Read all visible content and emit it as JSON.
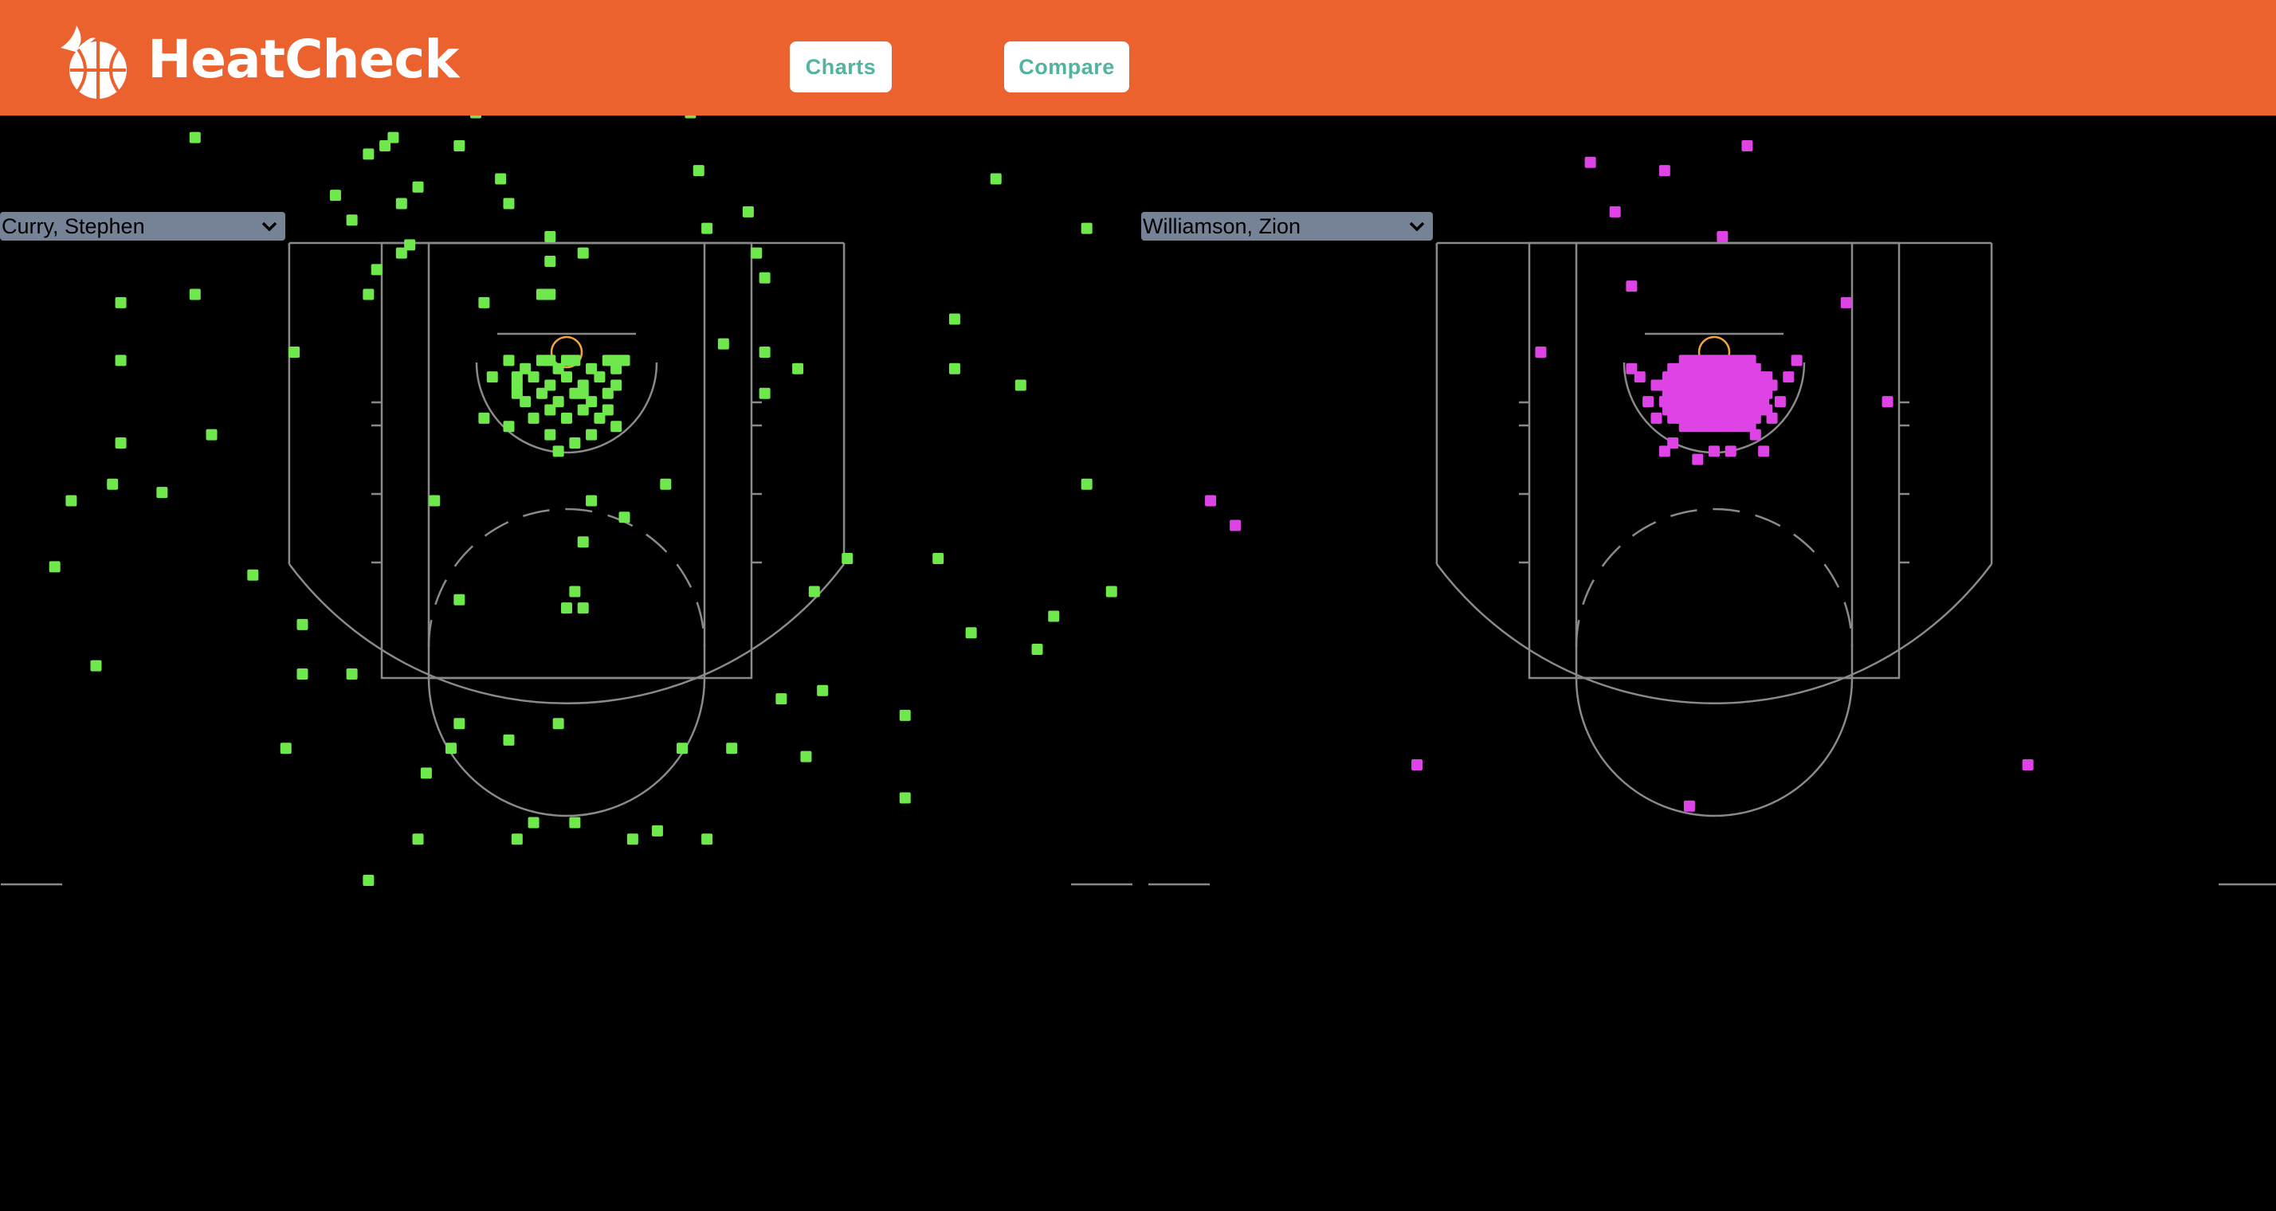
{
  "header": {
    "brand": "HeatCheck",
    "nav": [
      {
        "label": "Charts"
      },
      {
        "label": "Compare"
      }
    ],
    "bg_color": "#ec622f",
    "accent_color": "#52b4a0"
  },
  "charts": [
    {
      "player_select": {
        "value": "Curry, Stephen"
      },
      "shot_color": "#6fe84e",
      "shots_top": [
        [
          -15,
          50
        ],
        [
          -3,
          50
        ],
        [
          19,
          35
        ],
        [
          33,
          37
        ],
        [
          49,
          75
        ],
        [
          -25,
          53
        ],
        [
          -25,
          43
        ],
        [
          -23,
          39
        ],
        [
          27,
          38
        ],
        [
          42,
          57
        ],
        [
          7,
          60
        ],
        [
          -24,
          24
        ],
        [
          -23,
          10
        ],
        [
          -22,
          25
        ],
        [
          -21,
          26
        ],
        [
          -20,
          12
        ],
        [
          -20,
          18
        ],
        [
          22,
          17
        ],
        [
          -28,
          19
        ],
        [
          -26,
          16
        ],
        [
          -24,
          7
        ],
        [
          -19,
          13
        ],
        [
          -18,
          20
        ],
        [
          -14,
          35
        ],
        [
          -13,
          25
        ],
        [
          -11,
          29
        ],
        [
          16,
          22
        ],
        [
          24,
          9
        ],
        [
          23,
          12
        ],
        [
          15,
          29
        ],
        [
          17,
          15
        ],
        [
          6,
          34
        ],
        [
          9,
          36
        ],
        [
          10,
          39
        ],
        [
          8,
          42
        ],
        [
          3,
          37
        ],
        [
          2,
          45
        ],
        [
          -5,
          39
        ]
      ],
      "shots_bottom": [
        [
          -54,
          -1
        ],
        [
          -54,
          6
        ],
        [
          -45,
          7
        ],
        [
          -60,
          -18
        ],
        [
          -49,
          -17
        ],
        [
          -43,
          -10
        ],
        [
          -26,
          -39
        ],
        [
          -32,
          -39
        ],
        [
          -32,
          -33
        ],
        [
          45,
          -25
        ],
        [
          63,
          -16
        ],
        [
          66,
          -29
        ],
        [
          49,
          -34
        ],
        [
          59,
          -32
        ],
        [
          47,
          4
        ],
        [
          63,
          15
        ],
        [
          52,
          21
        ],
        [
          55,
          -4
        ],
        [
          47,
          -2
        ],
        [
          24,
          -5
        ],
        [
          30,
          -29
        ],
        [
          34,
          -25
        ],
        [
          57,
          -36
        ],
        [
          -45,
          26
        ],
        [
          -54,
          -11
        ],
        [
          -55,
          -16
        ],
        [
          -62,
          -26
        ],
        [
          -57,
          -38
        ],
        [
          -38,
          -27
        ],
        [
          -16,
          -18
        ],
        [
          -13,
          -30
        ],
        [
          -13,
          -45
        ],
        [
          -4,
          -57
        ],
        [
          -1,
          -45
        ],
        [
          2,
          -31
        ],
        [
          -17,
          -51
        ],
        [
          -14,
          -48
        ],
        [
          -18,
          -59
        ],
        [
          -24,
          -64
        ],
        [
          -6,
          -59
        ],
        [
          1,
          -57
        ],
        [
          8,
          -59
        ],
        [
          14,
          -48
        ],
        [
          17,
          -59
        ],
        [
          20,
          -48
        ],
        [
          31,
          -41
        ],
        [
          29,
          -49
        ],
        [
          41,
          -44
        ],
        [
          11,
          -58
        ],
        [
          -34,
          -48
        ],
        [
          -7,
          -47
        ],
        [
          26,
          -42
        ],
        [
          0,
          -31
        ],
        [
          41,
          -54
        ]
      ],
      "shots_mid": [
        [
          -8,
          21
        ],
        [
          -7,
          18
        ],
        [
          -2,
          14
        ],
        [
          -2,
          11
        ],
        [
          2,
          12
        ],
        [
          -7,
          -9
        ],
        [
          -6,
          -4
        ],
        [
          2,
          -23
        ],
        [
          0,
          -1
        ],
        [
          -2,
          7
        ],
        [
          -9,
          -3
        ],
        [
          -3,
          7
        ],
        [
          -2,
          -1
        ],
        [
          5,
          -7
        ],
        [
          7,
          -20
        ],
        [
          -10,
          6
        ],
        [
          6,
          -1
        ],
        [
          3,
          -18
        ],
        [
          1,
          -29
        ],
        [
          2,
          -5
        ],
        [
          -10,
          -8
        ],
        [
          6,
          -9
        ],
        [
          12,
          -16
        ],
        [
          19,
          1
        ],
        [
          24,
          0
        ],
        [
          28,
          -2
        ],
        [
          -33,
          0
        ]
      ]
    },
    {
      "player_select": {
        "value": "Williamson, Zion"
      },
      "shot_color": "#de43e6",
      "shots_extra": [
        [
          -61,
          -18
        ],
        [
          -58,
          -21
        ],
        [
          -36,
          -50
        ],
        [
          -3,
          -55
        ],
        [
          38,
          -50
        ],
        [
          21,
          -6
        ],
        [
          16,
          6
        ],
        [
          21,
          33
        ],
        [
          -23,
          32
        ],
        [
          -21,
          0
        ],
        [
          -15,
          23
        ],
        [
          -12,
          17
        ],
        [
          -10,
          8
        ],
        [
          1,
          14
        ],
        [
          4,
          25
        ],
        [
          -6,
          22
        ]
      ]
    }
  ]
}
